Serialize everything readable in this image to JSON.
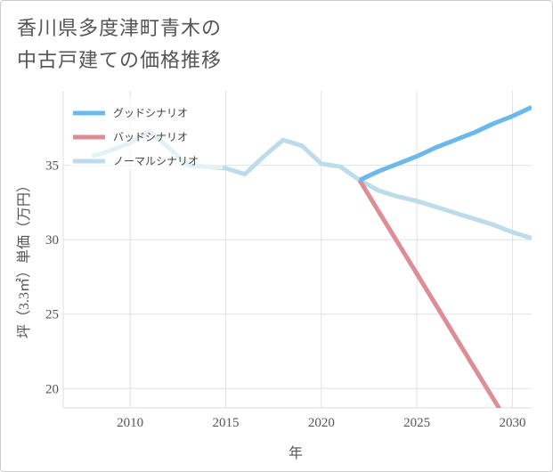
{
  "title": {
    "line1": "香川県多度津町青木の",
    "line2": "中古戸建ての価格推移"
  },
  "chart_data": {
    "type": "line",
    "xlabel": "年",
    "ylabel": "坪（3.3㎡）単価（万円）",
    "xlim": [
      2006.5,
      2031
    ],
    "ylim": [
      18.7,
      40
    ],
    "xticks": [
      2010,
      2015,
      2020,
      2025,
      2030
    ],
    "yticks": [
      20,
      25,
      30,
      35
    ],
    "grid": true,
    "legend_position": "top-left",
    "series": [
      {
        "name": "グッドシナリオ",
        "color": "#6bb8ec",
        "x": [
          2022,
          2023,
          2024,
          2025,
          2026,
          2027,
          2028,
          2029,
          2030,
          2031
        ],
        "y": [
          34.0,
          34.6,
          35.1,
          35.6,
          36.2,
          36.7,
          37.2,
          37.8,
          38.3,
          38.9
        ]
      },
      {
        "name": "バッドシナリオ",
        "color": "#dd8d95",
        "x": [
          2022,
          2023,
          2024,
          2025,
          2026,
          2027,
          2028,
          2029,
          2030,
          2031
        ],
        "y": [
          34.0,
          31.9,
          29.8,
          27.7,
          25.6,
          23.5,
          21.4,
          19.3,
          17.2,
          15.1
        ]
      },
      {
        "name": "ノーマルシナリオ",
        "color": "#bcdcea",
        "x": [
          2008,
          2009,
          2010,
          2011,
          2012,
          2013,
          2014,
          2015,
          2016,
          2017,
          2018,
          2019,
          2020,
          2021,
          2022,
          2023,
          2024,
          2025,
          2026,
          2027,
          2028,
          2029,
          2030,
          2031
        ],
        "y": [
          35.6,
          36.0,
          36.5,
          37.3,
          36.2,
          35.0,
          34.9,
          34.8,
          34.4,
          35.6,
          36.7,
          36.3,
          35.1,
          34.9,
          34.0,
          33.3,
          32.9,
          32.6,
          32.2,
          31.8,
          31.4,
          31.0,
          30.5,
          30.1
        ]
      }
    ]
  }
}
